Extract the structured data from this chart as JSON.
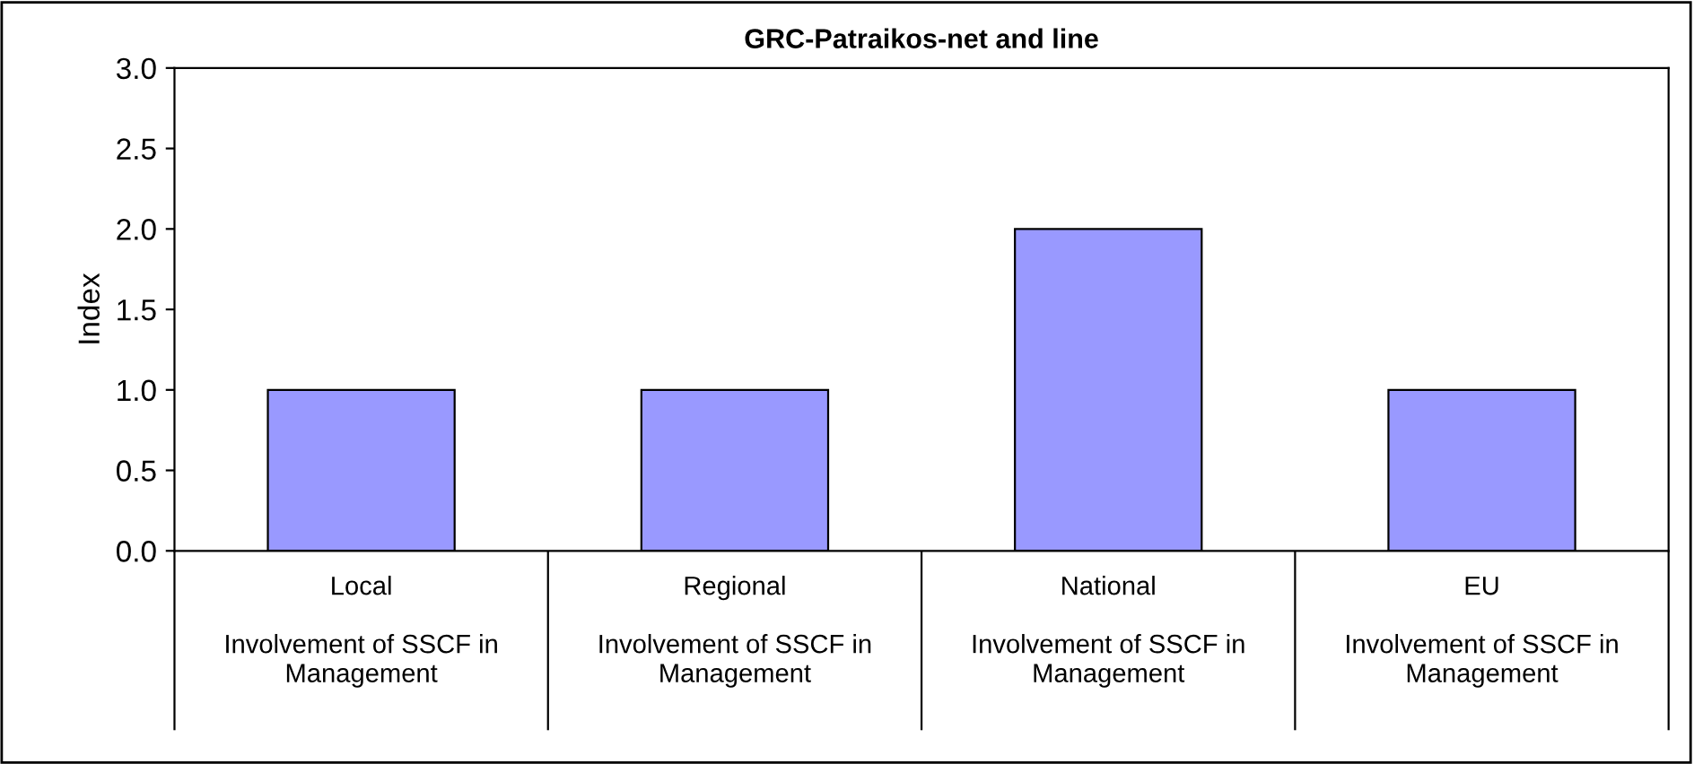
{
  "chart_data": {
    "type": "bar",
    "title": "GRC-Patraikos-net and line",
    "ylabel": "Index",
    "categories": [
      "Local\nInvolvement of SSCF in\nManagement",
      "Regional\nInvolvement of SSCF in\nManagement",
      "National\nInvolvement of SSCF in\nManagement",
      "EU\nInvolvement of SSCF in\nManagement"
    ],
    "values": [
      1,
      1,
      2,
      1
    ],
    "color": "#9999ff",
    "ylim": [
      0,
      3
    ],
    "yticks": [
      {
        "value": 0,
        "label": "0.0"
      },
      {
        "value": 0.5,
        "label": "0.5"
      },
      {
        "value": 1,
        "label": "1.0"
      },
      {
        "value": 1.5,
        "label": "1.5"
      },
      {
        "value": 2,
        "label": "2.0"
      },
      {
        "value": 2.5,
        "label": "2.5"
      },
      {
        "value": 3,
        "label": "3.0"
      }
    ],
    "grid": false
  }
}
